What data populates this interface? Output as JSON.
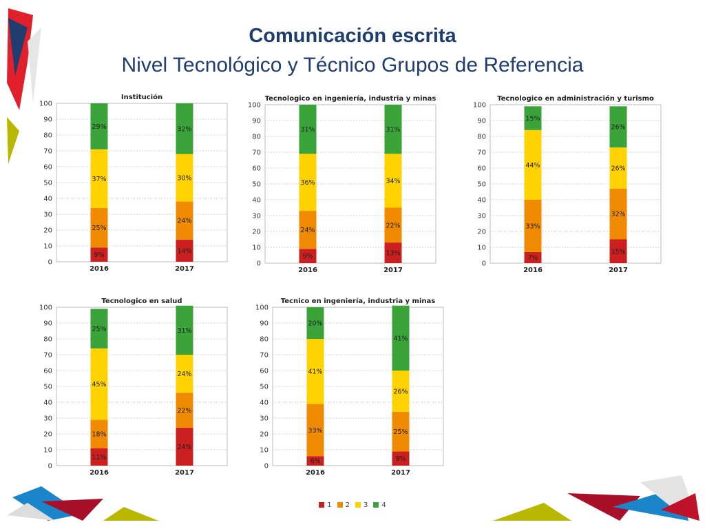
{
  "slide": {
    "title": "Comunicación escrita",
    "subtitle": "Nivel Tecnológico y Técnico Grupos de Referencia"
  },
  "legend": {
    "items": [
      {
        "label": "1",
        "color": "#cc1f1f"
      },
      {
        "label": "2",
        "color": "#f08a00"
      },
      {
        "label": "3",
        "color": "#ffd200"
      },
      {
        "label": "4",
        "color": "#3aa33a"
      }
    ]
  },
  "chart_data": [
    {
      "type": "bar",
      "stacked": true,
      "title": "Institución",
      "categories": [
        "2016",
        "2017"
      ],
      "ylim": [
        0,
        100
      ],
      "yticks": [
        0,
        10,
        20,
        30,
        40,
        50,
        60,
        70,
        80,
        90,
        100
      ],
      "grid": true,
      "series": [
        {
          "name": "1",
          "values": [
            9,
            14
          ]
        },
        {
          "name": "2",
          "values": [
            25,
            24
          ]
        },
        {
          "name": "3",
          "values": [
            37,
            30
          ]
        },
        {
          "name": "4",
          "values": [
            29,
            32
          ]
        }
      ]
    },
    {
      "type": "bar",
      "stacked": true,
      "title": "Tecnologico en ingeniería, industria y minas",
      "categories": [
        "2016",
        "2017"
      ],
      "ylim": [
        0,
        100
      ],
      "yticks": [
        0,
        10,
        20,
        30,
        40,
        50,
        60,
        70,
        80,
        90,
        100
      ],
      "grid": true,
      "series": [
        {
          "name": "1",
          "values": [
            9,
            13
          ]
        },
        {
          "name": "2",
          "values": [
            24,
            22
          ]
        },
        {
          "name": "3",
          "values": [
            36,
            34
          ]
        },
        {
          "name": "4",
          "values": [
            31,
            31
          ]
        }
      ]
    },
    {
      "type": "bar",
      "stacked": true,
      "title": "Tecnologico en administración y turismo",
      "categories": [
        "2016",
        "2017"
      ],
      "ylim": [
        0,
        100
      ],
      "yticks": [
        0,
        10,
        20,
        30,
        40,
        50,
        60,
        70,
        80,
        90,
        100
      ],
      "grid": true,
      "series": [
        {
          "name": "1",
          "values": [
            7,
            15
          ]
        },
        {
          "name": "2",
          "values": [
            33,
            32
          ]
        },
        {
          "name": "3",
          "values": [
            44,
            26
          ]
        },
        {
          "name": "4",
          "values": [
            15,
            26
          ]
        }
      ]
    },
    {
      "type": "bar",
      "stacked": true,
      "title": "Tecnologico en salud",
      "categories": [
        "2016",
        "2017"
      ],
      "ylim": [
        0,
        100
      ],
      "yticks": [
        0,
        10,
        20,
        30,
        40,
        50,
        60,
        70,
        80,
        90,
        100
      ],
      "grid": true,
      "series": [
        {
          "name": "1",
          "values": [
            11,
            24
          ]
        },
        {
          "name": "2",
          "values": [
            18,
            22
          ]
        },
        {
          "name": "3",
          "values": [
            45,
            24
          ]
        },
        {
          "name": "4",
          "values": [
            25,
            31
          ]
        }
      ]
    },
    {
      "type": "bar",
      "stacked": true,
      "title": "Tecnico en ingeniería, industria y minas",
      "categories": [
        "2016",
        "2017"
      ],
      "ylim": [
        0,
        100
      ],
      "yticks": [
        0,
        10,
        20,
        30,
        40,
        50,
        60,
        70,
        80,
        90,
        100
      ],
      "grid": true,
      "series": [
        {
          "name": "1",
          "values": [
            6,
            9
          ]
        },
        {
          "name": "2",
          "values": [
            33,
            25
          ]
        },
        {
          "name": "3",
          "values": [
            41,
            26
          ]
        },
        {
          "name": "4",
          "values": [
            20,
            41
          ]
        }
      ]
    }
  ]
}
